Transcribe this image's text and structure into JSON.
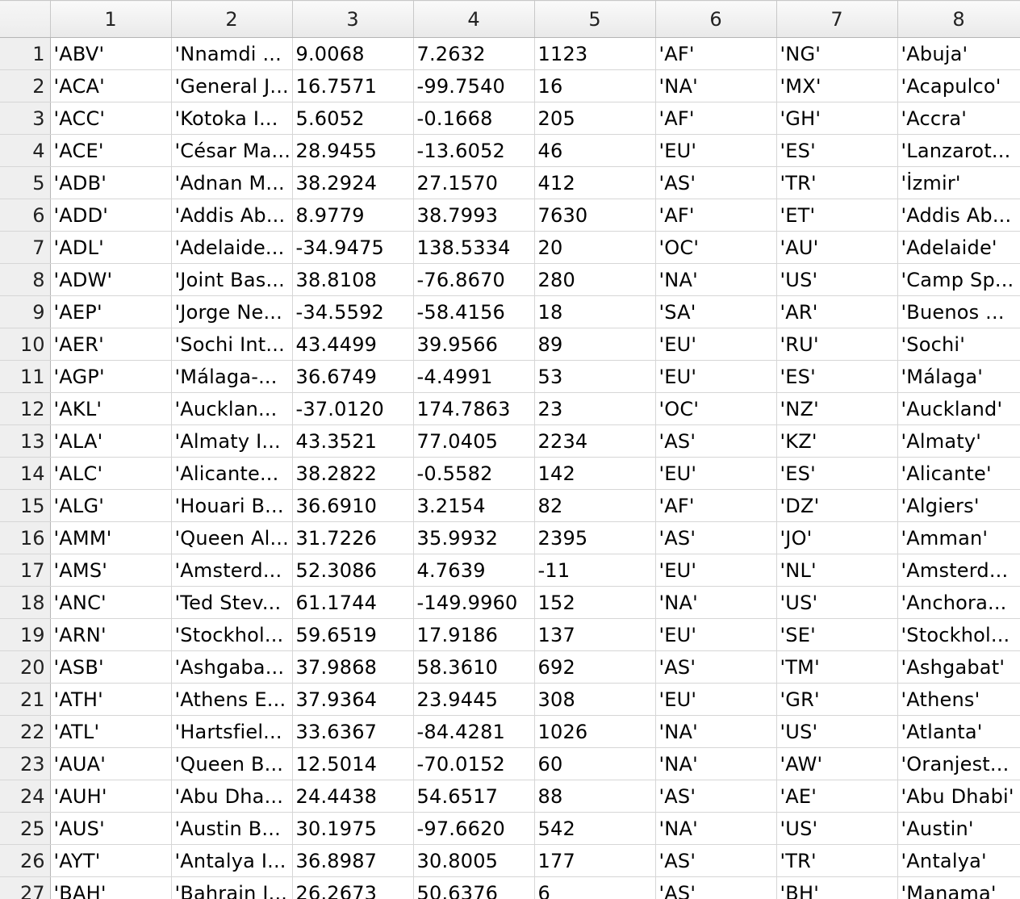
{
  "columns": [
    "1",
    "2",
    "3",
    "4",
    "5",
    "6",
    "7",
    "8"
  ],
  "rows": [
    {
      "n": "1",
      "cells": [
        "'ABV'",
        "'Nnamdi ...",
        "9.0068",
        "7.2632",
        "1123",
        "'AF'",
        "'NG'",
        "'Abuja'"
      ]
    },
    {
      "n": "2",
      "cells": [
        "'ACA'",
        "'General J...",
        "16.7571",
        "-99.7540",
        "16",
        "'NA'",
        "'MX'",
        "'Acapulco'"
      ]
    },
    {
      "n": "3",
      "cells": [
        "'ACC'",
        "'Kotoka I...",
        "5.6052",
        "-0.1668",
        "205",
        "'AF'",
        "'GH'",
        "'Accra'"
      ]
    },
    {
      "n": "4",
      "cells": [
        "'ACE'",
        "'César Ma...",
        "28.9455",
        "-13.6052",
        "46",
        "'EU'",
        "'ES'",
        "'Lanzarot..."
      ]
    },
    {
      "n": "5",
      "cells": [
        "'ADB'",
        "'Adnan M...",
        "38.2924",
        "27.1570",
        "412",
        "'AS'",
        "'TR'",
        "'İzmir'"
      ]
    },
    {
      "n": "6",
      "cells": [
        "'ADD'",
        "'Addis Ab...",
        "8.9779",
        "38.7993",
        "7630",
        "'AF'",
        "'ET'",
        "'Addis Ab..."
      ]
    },
    {
      "n": "7",
      "cells": [
        "'ADL'",
        "'Adelaide...",
        "-34.9475",
        "138.5334",
        "20",
        "'OC'",
        "'AU'",
        "'Adelaide'"
      ]
    },
    {
      "n": "8",
      "cells": [
        "'ADW'",
        "'Joint Bas...",
        "38.8108",
        "-76.8670",
        "280",
        "'NA'",
        "'US'",
        "'Camp Sp..."
      ]
    },
    {
      "n": "9",
      "cells": [
        "'AEP'",
        "'Jorge Ne...",
        "-34.5592",
        "-58.4156",
        "18",
        "'SA'",
        "'AR'",
        "'Buenos ..."
      ]
    },
    {
      "n": "10",
      "cells": [
        "'AER'",
        "'Sochi Int...",
        "43.4499",
        "39.9566",
        "89",
        "'EU'",
        "'RU'",
        "'Sochi'"
      ]
    },
    {
      "n": "11",
      "cells": [
        "'AGP'",
        "'Málaga-...",
        "36.6749",
        "-4.4991",
        "53",
        "'EU'",
        "'ES'",
        "'Málaga'"
      ]
    },
    {
      "n": "12",
      "cells": [
        "'AKL'",
        "'Aucklan...",
        "-37.0120",
        "174.7863",
        "23",
        "'OC'",
        "'NZ'",
        "'Auckland'"
      ]
    },
    {
      "n": "13",
      "cells": [
        "'ALA'",
        "'Almaty I...",
        "43.3521",
        "77.0405",
        "2234",
        "'AS'",
        "'KZ'",
        "'Almaty'"
      ]
    },
    {
      "n": "14",
      "cells": [
        "'ALC'",
        "'Alicante...",
        "38.2822",
        "-0.5582",
        "142",
        "'EU'",
        "'ES'",
        "'Alicante'"
      ]
    },
    {
      "n": "15",
      "cells": [
        "'ALG'",
        "'Houari B...",
        "36.6910",
        "3.2154",
        "82",
        "'AF'",
        "'DZ'",
        "'Algiers'"
      ]
    },
    {
      "n": "16",
      "cells": [
        "'AMM'",
        "'Queen Al...",
        "31.7226",
        "35.9932",
        "2395",
        "'AS'",
        "'JO'",
        "'Amman'"
      ]
    },
    {
      "n": "17",
      "cells": [
        "'AMS'",
        "'Amsterd...",
        "52.3086",
        "4.7639",
        "-11",
        "'EU'",
        "'NL'",
        "'Amsterd..."
      ]
    },
    {
      "n": "18",
      "cells": [
        "'ANC'",
        "'Ted Stev...",
        "61.1744",
        "-149.9960",
        "152",
        "'NA'",
        "'US'",
        "'Anchora..."
      ]
    },
    {
      "n": "19",
      "cells": [
        "'ARN'",
        "'Stockhol...",
        "59.6519",
        "17.9186",
        "137",
        "'EU'",
        "'SE'",
        "'Stockhol..."
      ]
    },
    {
      "n": "20",
      "cells": [
        "'ASB'",
        "'Ashgaba...",
        "37.9868",
        "58.3610",
        "692",
        "'AS'",
        "'TM'",
        "'Ashgabat'"
      ]
    },
    {
      "n": "21",
      "cells": [
        "'ATH'",
        "'Athens E...",
        "37.9364",
        "23.9445",
        "308",
        "'EU'",
        "'GR'",
        "'Athens'"
      ]
    },
    {
      "n": "22",
      "cells": [
        "'ATL'",
        "'Hartsfiel...",
        "33.6367",
        "-84.4281",
        "1026",
        "'NA'",
        "'US'",
        "'Atlanta'"
      ]
    },
    {
      "n": "23",
      "cells": [
        "'AUA'",
        "'Queen B...",
        "12.5014",
        "-70.0152",
        "60",
        "'NA'",
        "'AW'",
        "'Oranjest..."
      ]
    },
    {
      "n": "24",
      "cells": [
        "'AUH'",
        "'Abu Dha...",
        "24.4438",
        "54.6517",
        "88",
        "'AS'",
        "'AE'",
        "'Abu Dhabi'"
      ]
    },
    {
      "n": "25",
      "cells": [
        "'AUS'",
        "'Austin B...",
        "30.1975",
        "-97.6620",
        "542",
        "'NA'",
        "'US'",
        "'Austin'"
      ]
    },
    {
      "n": "26",
      "cells": [
        "'AYT'",
        "'Antalya I...",
        "36.8987",
        "30.8005",
        "177",
        "'AS'",
        "'TR'",
        "'Antalya'"
      ]
    },
    {
      "n": "27",
      "cells": [
        "'BAH'",
        "'Bahrain I...",
        "26.2673",
        "50.6376",
        "6",
        "'AS'",
        "'BH'",
        "'Manama'"
      ]
    }
  ]
}
